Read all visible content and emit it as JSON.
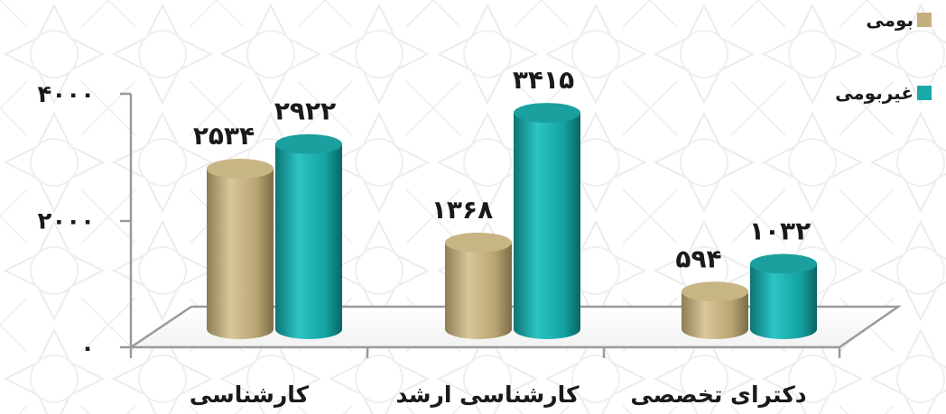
{
  "chart_data": {
    "type": "bar",
    "categories": [
      "کارشناسی",
      "کارشناسی ارشد",
      "دکترای تخصصی"
    ],
    "series": [
      {
        "name": "بومی",
        "values": [
          2534,
          1368,
          594
        ],
        "labels": [
          "۲۵۳۴",
          "۱۳۶۸",
          "۵۹۴"
        ],
        "color": "#c4b07f"
      },
      {
        "name": "غیربومی",
        "values": [
          2922,
          3415,
          1032
        ],
        "labels": [
          "۲۹۲۲",
          "۳۴۱۵",
          "۱۰۳۲"
        ],
        "color": "#1aa8a8"
      }
    ],
    "yticks": [
      {
        "value": 0,
        "label": "۰"
      },
      {
        "value": 2000,
        "label": "۲۰۰۰"
      },
      {
        "value": 4000,
        "label": "۴۰۰۰"
      }
    ],
    "ylim": [
      0,
      4000
    ],
    "legend_position": "top-right",
    "grid": false,
    "style": "3d-cylinder"
  }
}
